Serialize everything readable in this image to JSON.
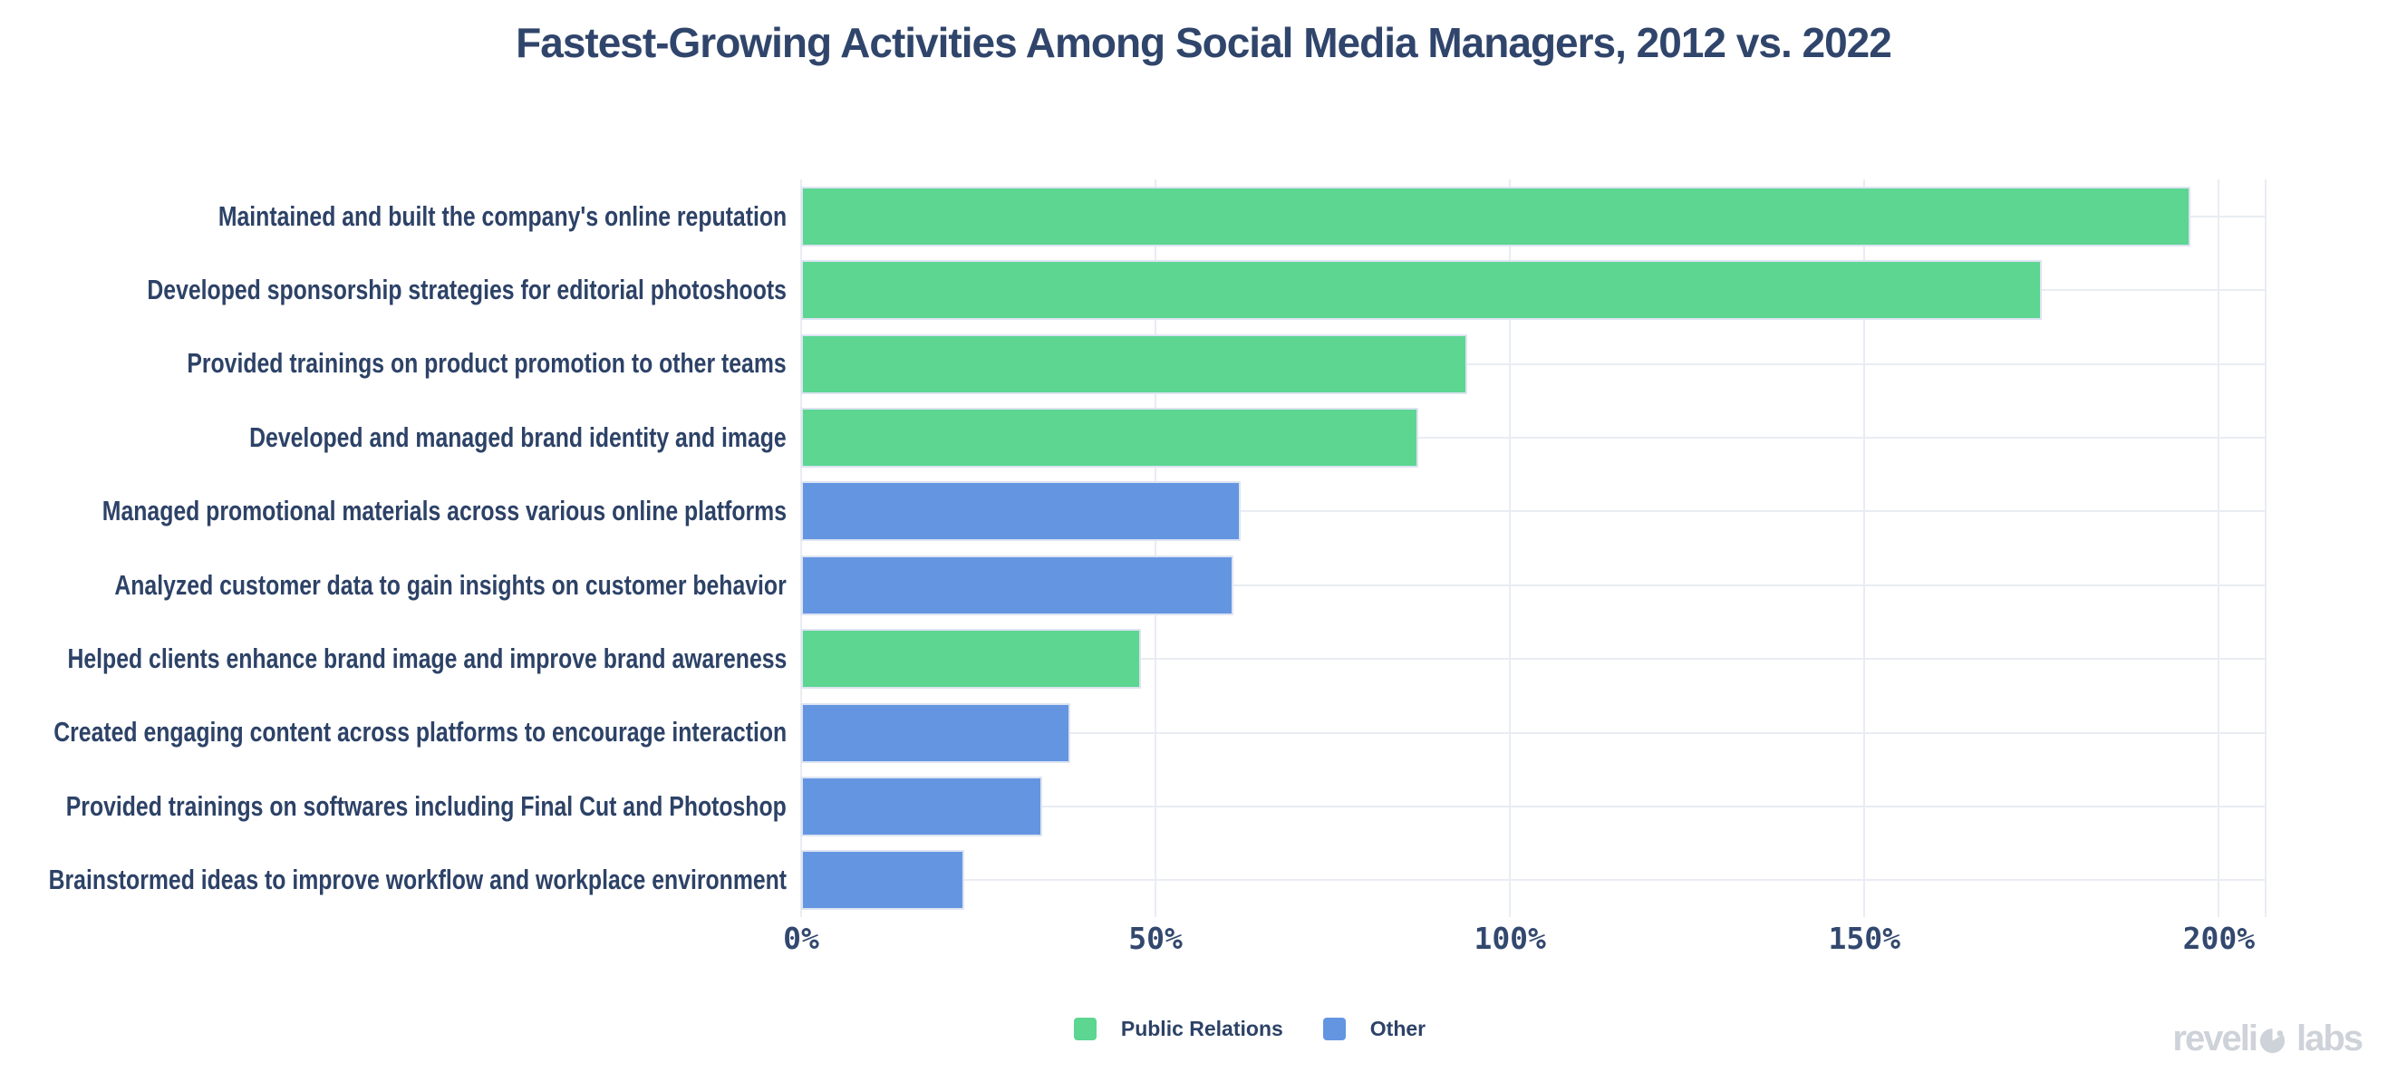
{
  "title": "Fastest-Growing Activities Among Social Media Managers, 2012 vs. 2022",
  "chart_data": {
    "type": "bar",
    "orientation": "horizontal",
    "title": "Fastest-Growing Activities Among Social Media Managers, 2012 vs. 2022",
    "categories": [
      "Maintained and built the company's online reputation",
      "Developed sponsorship strategies for editorial photoshoots",
      "Provided trainings on product promotion to other teams",
      "Developed and managed brand identity and image",
      "Managed promotional materials across various online platforms",
      "Analyzed customer data to gain insights on customer behavior",
      "Helped clients enhance brand image and improve brand awareness",
      "Created engaging content across platforms to encourage interaction",
      "Provided trainings on softwares including Final Cut and Photoshop",
      "Brainstormed ideas to improve workflow and workplace environment"
    ],
    "values": [
      196,
      175,
      94,
      87,
      62,
      61,
      48,
      38,
      34,
      23
    ],
    "unit": "%",
    "bar_series": [
      "Public Relations",
      "Public Relations",
      "Public Relations",
      "Public Relations",
      "Other",
      "Other",
      "Public Relations",
      "Other",
      "Other",
      "Other"
    ],
    "series": [
      {
        "name": "Public Relations",
        "color": "#5cd691"
      },
      {
        "name": "Other",
        "color": "#6495e1"
      }
    ],
    "x_ticks": [
      {
        "label": "0%",
        "value": 0
      },
      {
        "label": "50%",
        "value": 50
      },
      {
        "label": "100%",
        "value": 100
      },
      {
        "label": "150%",
        "value": 150
      },
      {
        "label": "200%",
        "value": 200
      }
    ],
    "xlim": [
      0,
      206.6
    ],
    "grid": true,
    "legend_position": "bottom-center"
  },
  "legend": {
    "items": [
      {
        "label": "Public Relations",
        "color": "#5cd691"
      },
      {
        "label": "Other",
        "color": "#6495e1"
      }
    ]
  },
  "branding": {
    "text": "revelio labs",
    "part1": "reveli",
    "part2": "labs",
    "color": "#ced2d9"
  },
  "colors": {
    "title_text": "#30456b",
    "label_text": "#2d4267",
    "tick_text": "#33486e",
    "gridline": "#e9ecf3",
    "bar_outline": "#dde4f2",
    "background": "#ffffff"
  }
}
